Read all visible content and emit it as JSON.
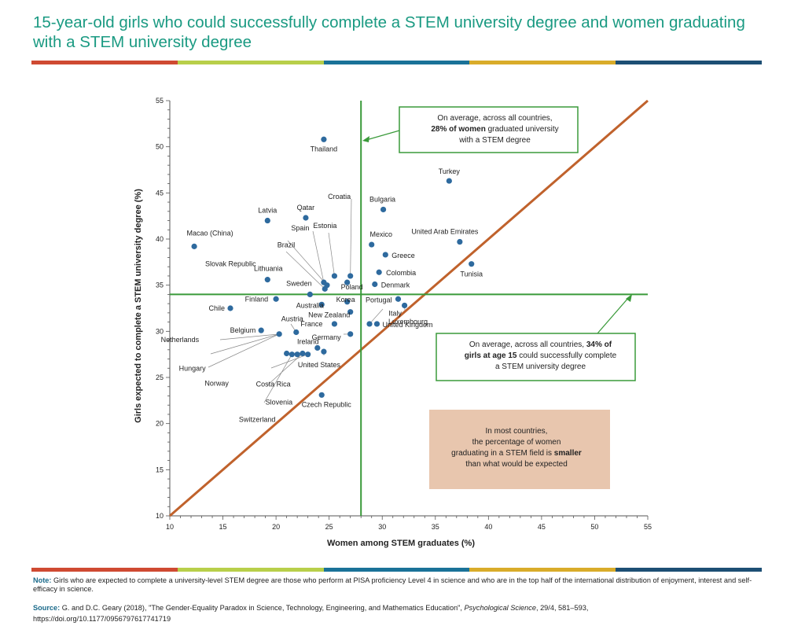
{
  "title": "15-year-old girls who could successfully complete a STEM university degree and women graduating with a STEM university degree",
  "stripe_colors": [
    "#cf4a32",
    "#b8cf4a",
    "#1a7298",
    "#d9ac2a",
    "#1d4f74"
  ],
  "chart_data": {
    "type": "scatter",
    "xlabel": "Women among STEM graduates (%)",
    "ylabel": "Girls expected to complete a STEM university degree (%)",
    "xlim": [
      10,
      55
    ],
    "ylim": [
      10,
      55
    ],
    "xticks": [
      "10",
      "15",
      "20",
      "25",
      "30",
      "35",
      "40",
      "45",
      "50",
      "55"
    ],
    "yticks": [
      "10",
      "15",
      "20",
      "25",
      "30",
      "35",
      "40",
      "45",
      "50",
      "55"
    ],
    "avg_women_graduated": 28,
    "avg_girls_expected": 34,
    "colors": {
      "points": "#2e6a9e",
      "diagonal": "#c0622c",
      "average": "#3a9a3a",
      "callout_fill": "#e8c6ae"
    },
    "points": [
      {
        "name": "Thailand",
        "x": 24.5,
        "y": 50.8
      },
      {
        "name": "Turkey",
        "x": 36.3,
        "y": 46.3
      },
      {
        "name": "Bulgaria",
        "x": 30.1,
        "y": 43.2
      },
      {
        "name": "Croatia",
        "x": 27.0,
        "y": 36.0
      },
      {
        "name": "Latvia",
        "x": 19.2,
        "y": 42.0
      },
      {
        "name": "Qatar",
        "x": 22.8,
        "y": 42.3
      },
      {
        "name": "Spain",
        "x": 24.5,
        "y": 35.3
      },
      {
        "name": "Estonia",
        "x": 25.5,
        "y": 36.0
      },
      {
        "name": "Brazil",
        "x": 24.8,
        "y": 35.0
      },
      {
        "name": "Slovak Republic",
        "x": 24.6,
        "y": 34.6
      },
      {
        "name": "Macao (China)",
        "x": 12.3,
        "y": 39.2
      },
      {
        "name": "Mexico",
        "x": 29.0,
        "y": 39.4
      },
      {
        "name": "United Arab Emirates",
        "x": 37.3,
        "y": 39.7
      },
      {
        "name": "Greece",
        "x": 30.3,
        "y": 38.3
      },
      {
        "name": "Tunisia",
        "x": 38.4,
        "y": 37.3
      },
      {
        "name": "Colombia",
        "x": 29.7,
        "y": 36.4
      },
      {
        "name": "Lithuania",
        "x": 19.2,
        "y": 35.6
      },
      {
        "name": "Denmark",
        "x": 29.3,
        "y": 35.1
      },
      {
        "name": "Sweden",
        "x": 23.2,
        "y": 34.0
      },
      {
        "name": "Poland",
        "x": 26.7,
        "y": 35.3
      },
      {
        "name": "Finland",
        "x": 20.0,
        "y": 33.5
      },
      {
        "name": "Korea",
        "x": 26.7,
        "y": 33.2
      },
      {
        "name": "Portugal",
        "x": 31.5,
        "y": 33.5
      },
      {
        "name": "Australia",
        "x": 24.3,
        "y": 32.9
      },
      {
        "name": "Chile",
        "x": 15.7,
        "y": 32.5
      },
      {
        "name": "Italy",
        "x": 32.1,
        "y": 32.8
      },
      {
        "name": "New Zealand",
        "x": 27.0,
        "y": 32.1
      },
      {
        "name": "Luxembourg",
        "x": 28.8,
        "y": 30.8
      },
      {
        "name": "France",
        "x": 25.5,
        "y": 30.8
      },
      {
        "name": "United Kingdom",
        "x": 29.5,
        "y": 30.8
      },
      {
        "name": "Austria",
        "x": 21.9,
        "y": 29.9
      },
      {
        "name": "Belgium",
        "x": 18.6,
        "y": 30.1
      },
      {
        "name": "Germany",
        "x": 27.0,
        "y": 29.7
      },
      {
        "name": "Netherlands",
        "x": 20.3,
        "y": 29.7
      },
      {
        "name": "Ireland",
        "x": 23.9,
        "y": 28.2
      },
      {
        "name": "Hungary",
        "x": 21.0,
        "y": 27.6
      },
      {
        "name": "United States",
        "x": 24.5,
        "y": 27.8
      },
      {
        "name": "Norway",
        "x": 22.5,
        "y": 27.6
      },
      {
        "name": "Costa Rica",
        "x": 23.0,
        "y": 27.5
      },
      {
        "name": "Slovenia",
        "x": 22.0,
        "y": 27.5
      },
      {
        "name": "Switzerland",
        "x": 21.5,
        "y": 27.5
      },
      {
        "name": "Czech Republic",
        "x": 24.3,
        "y": 23.1
      }
    ],
    "annotations": {
      "vertical_box": [
        "On average, across all countries,",
        "**28% of women** graduated university",
        "with a STEM degree"
      ],
      "horizontal_box": [
        "On average, across all countries, **34% of**",
        "**girls at age 15** could successfully complete",
        "a STEM university degree"
      ],
      "callout_box": [
        "In most countries,",
        "the percentage of women",
        "graduating in a STEM field is **smaller**",
        "than what would be expected"
      ]
    }
  },
  "note_label": "Note:",
  "note_text": " Girls who are expected to complete a university-level STEM degree are those who perform at PISA proficiency Level 4 in science and who are in the top half of the international distribution of enjoyment, interest and self-efficacy in science.",
  "source_label": "Source:",
  "source_text": " G. and D.C. Geary (2018), \"The Gender-Equality Paradox in Science, Technology, Engineering, and Mathematics Education\", ",
  "source_journal": "Psychological Science",
  "source_rest": ", 29/4, 581–593,",
  "source_url": "https://doi.org/10.1177/0956797617741719"
}
